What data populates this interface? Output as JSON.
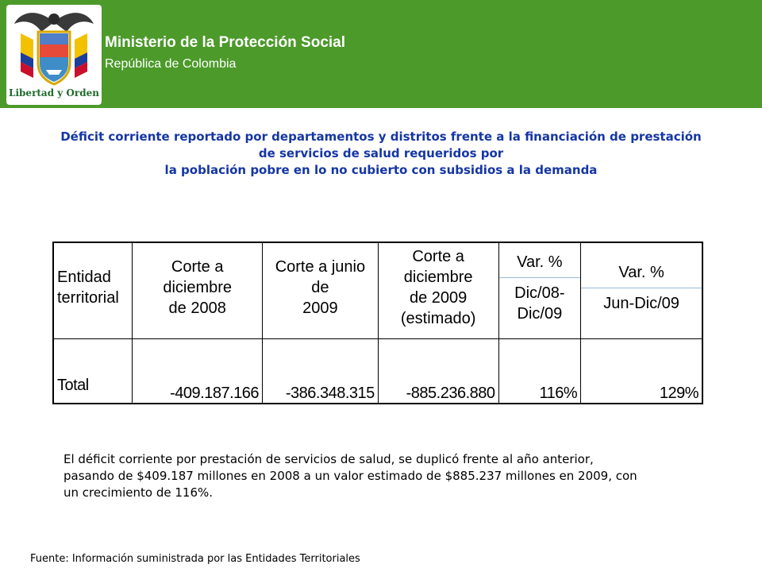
{
  "header": {
    "emblem_motto": "Libertad y Orden",
    "ministry": "Ministerio de la Protección Social",
    "country": "República de Colombia",
    "banner_color": "#4c9a2a"
  },
  "title": {
    "line1": "Déficit corriente reportado por departamentos y distritos frente a la financiación de prestación",
    "line2": "de servicios de salud requeridos por",
    "line3": "la población pobre en lo no cubierto con subsidios a la demanda",
    "color": "#1536a4"
  },
  "table": {
    "headers": {
      "col1": [
        "Entidad",
        "territorial"
      ],
      "col2": [
        "Corte a diciembre",
        "de 2008"
      ],
      "col3": [
        "Corte a junio de",
        "2009"
      ],
      "col4": [
        "Corte a diciembre",
        "de 2009",
        "(estimado)"
      ],
      "col5_top": "Var. %",
      "col5_bottom": [
        "Dic/08-",
        "Dic/09"
      ],
      "col6_top": "Var. %",
      "col6_bottom": "Jun-Dic/09"
    },
    "rows": [
      {
        "label": "Total",
        "dec2008": "-409.187.166",
        "jun2009": "-386.348.315",
        "dec2009": "-885.236.880",
        "var_dec": "116%",
        "var_jun": "129%"
      }
    ]
  },
  "note": {
    "line1": "El déficit corriente por prestación de servicios de salud, se duplicó frente al año anterior,",
    "line2": "pasando de $409.187 millones en 2008 a un valor estimado de $885.237 millones en 2009, con",
    "line3": "un crecimiento de 116%."
  },
  "source": "Fuente: Información suministrada por las Entidades Territoriales"
}
